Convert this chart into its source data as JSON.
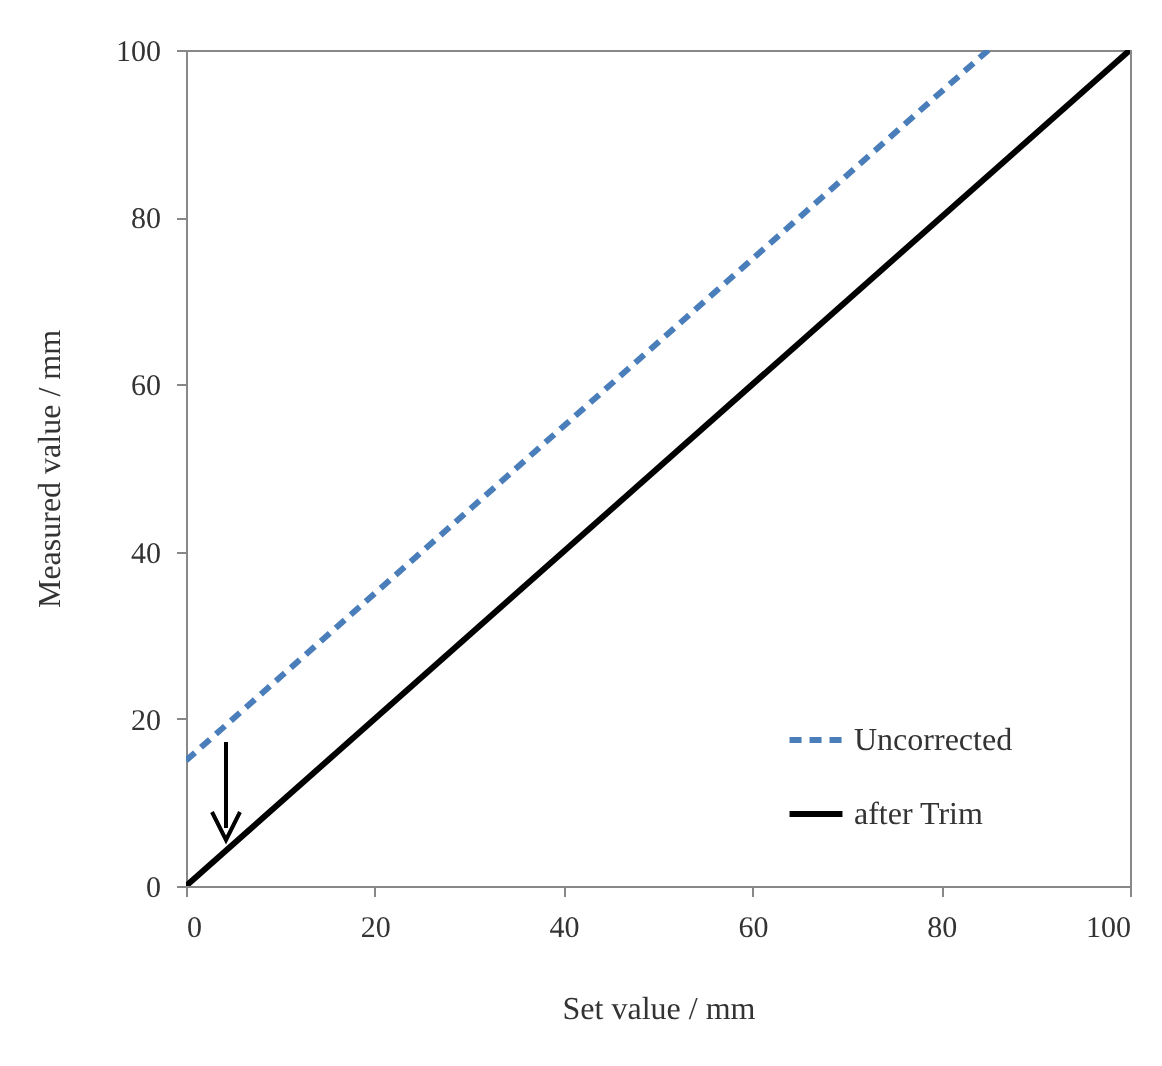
{
  "chart_data": {
    "type": "line",
    "xlabel": "Set value / mm",
    "ylabel": "Measured value / mm",
    "series": [
      {
        "name": "Uncorrected",
        "color": "#4a7ebb",
        "x": [
          0,
          85
        ],
        "values": [
          15,
          100
        ],
        "line_style": "dashed"
      },
      {
        "name": "after Trim",
        "color": "#000000",
        "x": [
          0,
          100
        ],
        "values": [
          0,
          100
        ],
        "line_style": "solid"
      }
    ],
    "xlim": [
      0,
      100
    ],
    "xticks": [
      0,
      20,
      40,
      60,
      80,
      100
    ],
    "ylim": [
      0,
      100
    ],
    "yticks": [
      0,
      20,
      40,
      60,
      80,
      100
    ],
    "grid": false,
    "legend": "bottom right",
    "marker": "none"
  }
}
